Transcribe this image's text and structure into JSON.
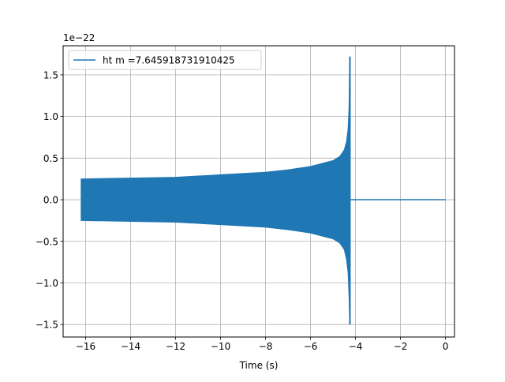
{
  "chart_data": {
    "type": "line",
    "title": "",
    "xlabel": "Time (s)",
    "ylabel": "",
    "y_scale_label": "1e−22",
    "xlim": [
      -17.0,
      0.4
    ],
    "ylim": [
      -1.65,
      1.85
    ],
    "x_ticks": [
      -16,
      -14,
      -12,
      -10,
      -8,
      -6,
      -4,
      -2,
      0
    ],
    "x_tick_labels": [
      "−16",
      "−14",
      "−12",
      "−10",
      "−8",
      "−6",
      "−4",
      "−2",
      "0"
    ],
    "y_ticks": [
      -1.5,
      -1.0,
      -0.5,
      0.0,
      0.5,
      1.0,
      1.5
    ],
    "y_tick_labels": [
      "−1.5",
      "−1.0",
      "−0.5",
      "0.0",
      "0.5",
      "1.0",
      "1.5"
    ],
    "grid": true,
    "legend_position": "upper-left",
    "series": [
      {
        "name": "ht m =7.645918731910425",
        "color": "#1f77b4",
        "start_time": -16.2,
        "merger_time": -4.25,
        "end_time": 0.0,
        "envelope": {
          "x": [
            -16.2,
            -14,
            -12,
            -10,
            -8,
            -7,
            -6,
            -5,
            -4.7,
            -4.5,
            -4.4,
            -4.33,
            -4.29,
            -4.26
          ],
          "upper": [
            0.25,
            0.26,
            0.27,
            0.3,
            0.33,
            0.36,
            0.4,
            0.47,
            0.52,
            0.6,
            0.7,
            0.85,
            1.1,
            1.72
          ],
          "lower": [
            -0.25,
            -0.26,
            -0.27,
            -0.3,
            -0.33,
            -0.36,
            -0.4,
            -0.47,
            -0.52,
            -0.6,
            -0.72,
            -0.88,
            -1.15,
            -1.5
          ]
        },
        "post_merger_value": 0.0
      }
    ]
  }
}
